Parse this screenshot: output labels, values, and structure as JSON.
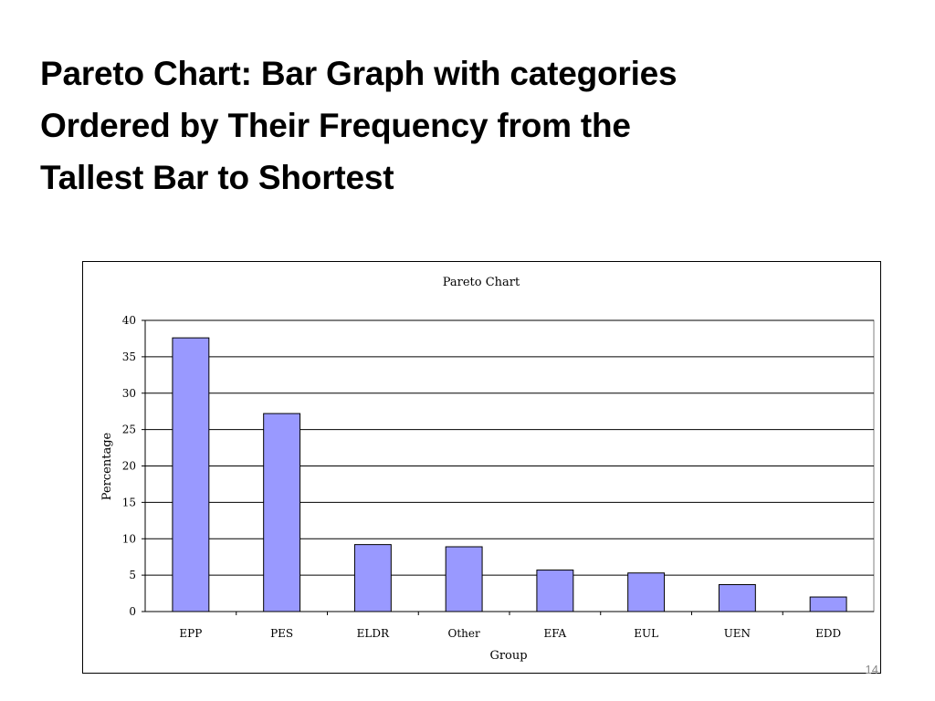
{
  "slide": {
    "title_lines": [
      "Pareto Chart: Bar Graph with categories",
      "Ordered by Their Frequency from the",
      "Tallest Bar to Shortest"
    ],
    "page_number": "14"
  },
  "chart_data": {
    "type": "bar",
    "title": "Pareto Chart",
    "xlabel": "Group",
    "ylabel": "Percentage",
    "categories": [
      "EPP",
      "PES",
      "ELDR",
      "Other",
      "EFA",
      "EUL",
      "UEN",
      "EDD"
    ],
    "values": [
      37.6,
      27.2,
      9.2,
      8.9,
      5.7,
      5.3,
      3.7,
      2.0
    ],
    "ylim": [
      0,
      40
    ],
    "yticks": [
      0,
      5,
      10,
      15,
      20,
      25,
      30,
      35,
      40
    ],
    "grid": true,
    "bar_color": "#9999ff",
    "legend": "none"
  }
}
